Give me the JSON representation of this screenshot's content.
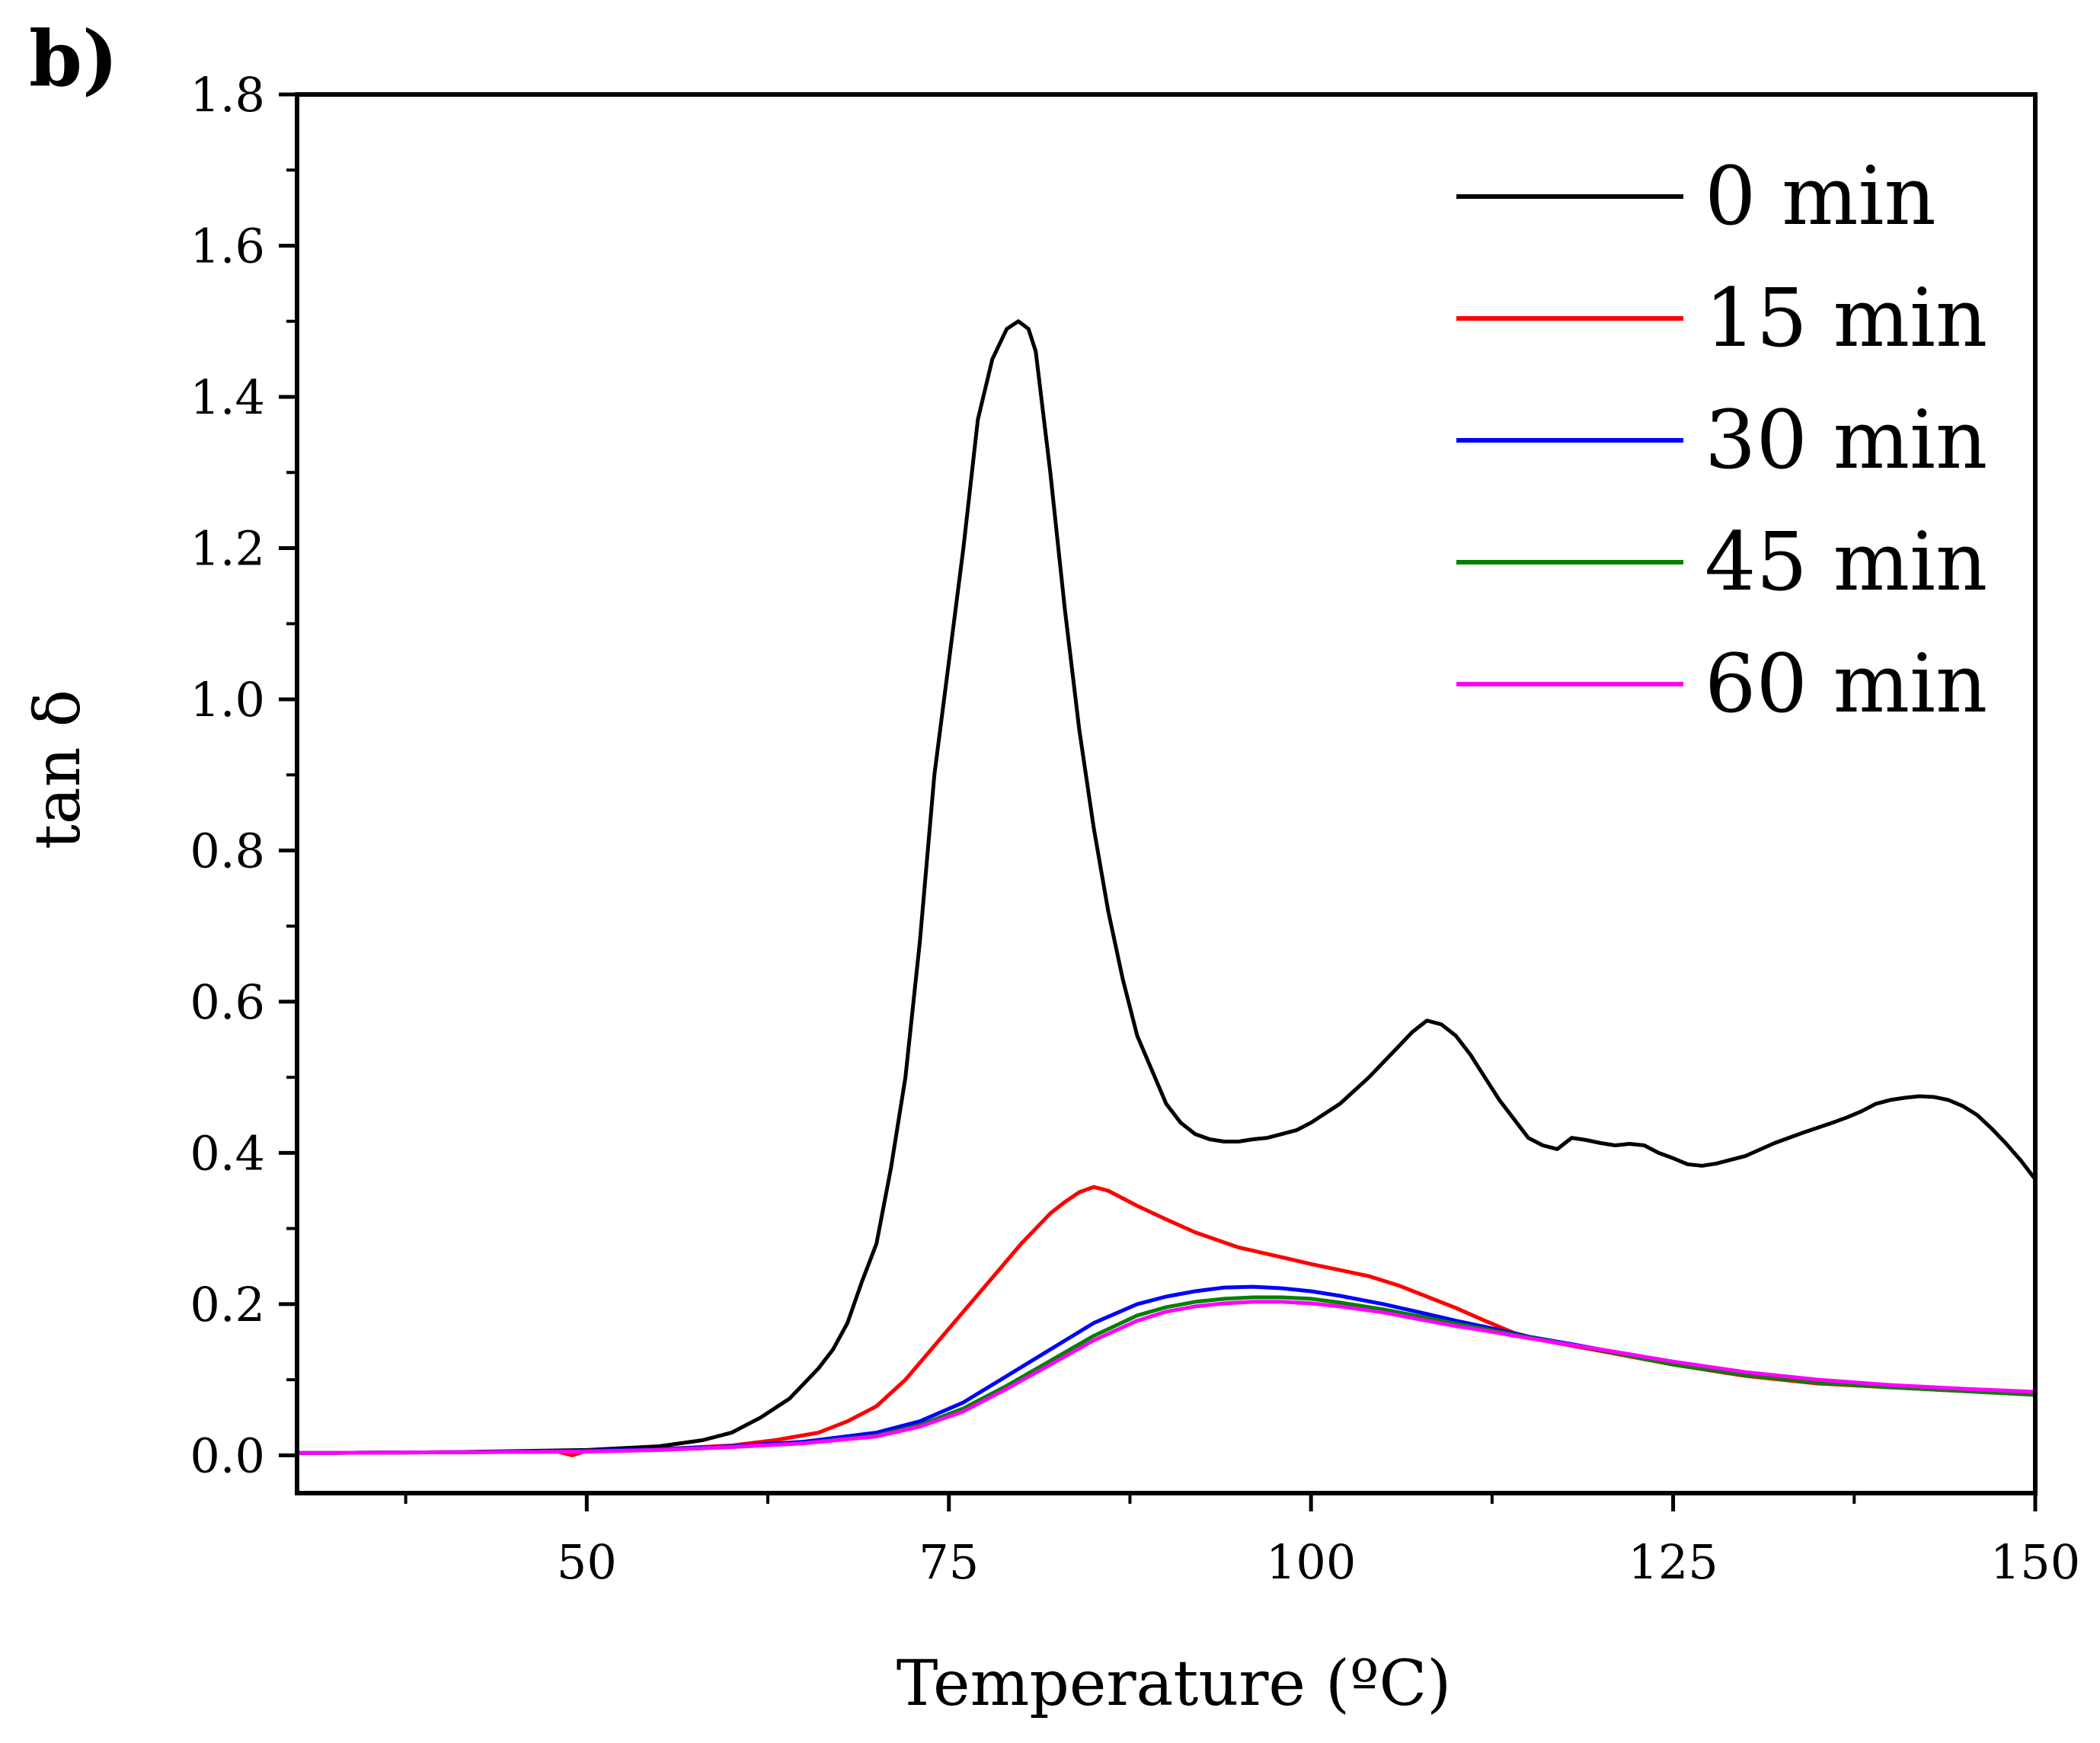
{
  "panel_label": "b)",
  "chart_data": {
    "type": "line",
    "title": "",
    "xlabel": "Temperature (ºC)",
    "ylabel": "tan δ",
    "xlim": [
      30,
      150
    ],
    "ylim": [
      -0.05,
      1.8
    ],
    "xticks": [
      50,
      75,
      100,
      125,
      150
    ],
    "xtick_labels": [
      "50",
      "75",
      "100",
      "125",
      "150"
    ],
    "yticks": [
      0.0,
      0.2,
      0.4,
      0.6,
      0.8,
      1.0,
      1.2,
      1.4,
      1.6,
      1.8
    ],
    "ytick_labels": [
      "0.0",
      "0.2",
      "0.4",
      "0.6",
      "0.8",
      "1.0",
      "1.2",
      "1.4",
      "1.6",
      "1.8"
    ],
    "grid": false,
    "legend_position": "top-right",
    "series": [
      {
        "name": "0 min",
        "color": "#000000",
        "x": [
          30,
          40,
          50,
          55,
          58,
          60,
          62,
          64,
          66,
          67,
          68,
          69,
          70,
          71,
          72,
          73,
          74,
          75,
          76,
          77,
          78,
          79,
          79.8,
          80.5,
          81,
          82,
          83,
          84,
          85,
          86,
          87,
          88,
          89,
          90,
          91,
          92,
          93,
          94,
          95,
          96,
          97,
          98,
          99,
          100,
          102,
          104,
          106,
          107,
          108,
          109,
          110,
          111,
          112,
          113,
          114,
          115,
          116,
          117,
          118,
          119,
          120,
          121,
          122,
          123,
          124,
          125,
          126,
          127,
          128,
          130,
          132,
          134,
          136,
          137,
          138,
          139,
          140,
          141,
          142,
          143,
          144,
          145,
          146,
          147,
          148,
          149,
          150
        ],
        "y": [
          0.003,
          0.004,
          0.007,
          0.012,
          0.02,
          0.03,
          0.05,
          0.075,
          0.115,
          0.14,
          0.175,
          0.23,
          0.28,
          0.38,
          0.5,
          0.68,
          0.9,
          1.05,
          1.2,
          1.37,
          1.45,
          1.49,
          1.5,
          1.49,
          1.46,
          1.3,
          1.12,
          0.96,
          0.83,
          0.72,
          0.63,
          0.555,
          0.51,
          0.465,
          0.44,
          0.425,
          0.418,
          0.415,
          0.415,
          0.418,
          0.42,
          0.425,
          0.43,
          0.44,
          0.465,
          0.5,
          0.54,
          0.56,
          0.575,
          0.57,
          0.555,
          0.53,
          0.5,
          0.47,
          0.445,
          0.42,
          0.41,
          0.405,
          0.42,
          0.417,
          0.413,
          0.41,
          0.412,
          0.41,
          0.4,
          0.393,
          0.385,
          0.383,
          0.386,
          0.396,
          0.413,
          0.427,
          0.44,
          0.447,
          0.455,
          0.465,
          0.47,
          0.473,
          0.475,
          0.474,
          0.47,
          0.462,
          0.45,
          0.432,
          0.412,
          0.39,
          0.365
        ]
      },
      {
        "name": "15 min",
        "color": "#ff0000",
        "x": [
          30,
          40,
          48,
          49,
          50,
          55,
          60,
          63,
          66,
          68,
          70,
          72,
          74,
          76,
          78,
          80,
          82,
          83,
          84,
          85,
          86,
          87,
          88,
          90,
          92,
          95,
          98,
          100,
          102,
          104,
          106,
          108,
          110,
          112,
          114,
          116,
          120,
          125,
          130,
          135,
          140,
          145,
          150
        ],
        "y": [
          0.003,
          0.004,
          0.005,
          0.0,
          0.006,
          0.008,
          0.013,
          0.02,
          0.03,
          0.045,
          0.065,
          0.1,
          0.145,
          0.19,
          0.235,
          0.28,
          0.32,
          0.335,
          0.348,
          0.355,
          0.35,
          0.34,
          0.33,
          0.312,
          0.295,
          0.275,
          0.262,
          0.253,
          0.245,
          0.237,
          0.225,
          0.21,
          0.195,
          0.178,
          0.162,
          0.152,
          0.138,
          0.12,
          0.105,
          0.095,
          0.09,
          0.085,
          0.08
        ]
      },
      {
        "name": "30 min",
        "color": "#0000ff",
        "x": [
          30,
          40,
          50,
          55,
          60,
          65,
          70,
          73,
          76,
          79,
          82,
          85,
          88,
          90,
          92,
          94,
          96,
          98,
          100,
          102,
          105,
          108,
          110,
          112,
          115,
          118,
          120,
          125,
          130,
          135,
          140,
          145,
          150
        ],
        "y": [
          0.003,
          0.004,
          0.006,
          0.008,
          0.012,
          0.018,
          0.03,
          0.045,
          0.07,
          0.105,
          0.14,
          0.175,
          0.2,
          0.21,
          0.217,
          0.222,
          0.223,
          0.221,
          0.217,
          0.211,
          0.2,
          0.187,
          0.178,
          0.17,
          0.157,
          0.147,
          0.14,
          0.123,
          0.108,
          0.098,
          0.092,
          0.087,
          0.082
        ]
      },
      {
        "name": "45 min",
        "color": "#008000",
        "x": [
          30,
          40,
          50,
          55,
          60,
          65,
          70,
          73,
          76,
          79,
          82,
          85,
          88,
          90,
          92,
          94,
          96,
          98,
          100,
          102,
          105,
          108,
          110,
          112,
          115,
          118,
          120,
          125,
          130,
          135,
          140,
          145,
          150
        ],
        "y": [
          0.003,
          0.004,
          0.005,
          0.007,
          0.011,
          0.016,
          0.026,
          0.04,
          0.062,
          0.092,
          0.125,
          0.158,
          0.185,
          0.196,
          0.203,
          0.207,
          0.209,
          0.209,
          0.207,
          0.202,
          0.193,
          0.182,
          0.174,
          0.167,
          0.156,
          0.146,
          0.139,
          0.12,
          0.106,
          0.096,
          0.09,
          0.085,
          0.08
        ]
      },
      {
        "name": "60 min",
        "color": "#ff00ff",
        "x": [
          30,
          40,
          50,
          55,
          60,
          65,
          70,
          73,
          76,
          79,
          82,
          85,
          88,
          90,
          92,
          94,
          96,
          98,
          100,
          102,
          105,
          108,
          110,
          112,
          115,
          118,
          120,
          125,
          130,
          135,
          140,
          145,
          150
        ],
        "y": [
          0.003,
          0.004,
          0.005,
          0.007,
          0.011,
          0.016,
          0.025,
          0.038,
          0.058,
          0.088,
          0.12,
          0.152,
          0.178,
          0.19,
          0.197,
          0.201,
          0.203,
          0.203,
          0.201,
          0.197,
          0.189,
          0.178,
          0.171,
          0.165,
          0.155,
          0.146,
          0.14,
          0.124,
          0.11,
          0.1,
          0.093,
          0.088,
          0.084
        ]
      }
    ]
  }
}
